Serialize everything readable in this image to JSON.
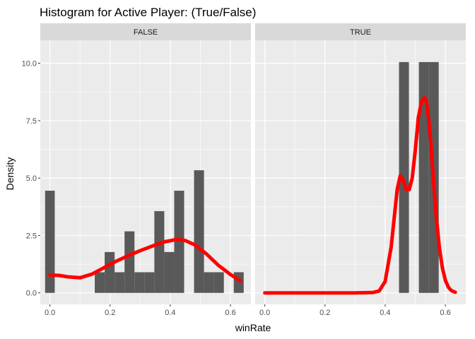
{
  "chart_data": {
    "type": "bar",
    "title": "Histogram for Active Player: (True/False)",
    "xlabel": "winRate",
    "ylabel": "Density",
    "xlim": [
      -0.032,
      0.668
    ],
    "ylim": [
      -0.5,
      11.0
    ],
    "x_ticks": [
      0.0,
      0.2,
      0.4,
      0.6
    ],
    "x_tick_labels": [
      "0.0",
      "0.2",
      "0.4",
      "0.6"
    ],
    "y_ticks": [
      0.0,
      2.5,
      5.0,
      7.5,
      10.0
    ],
    "y_tick_labels": [
      "0.0",
      "2.5",
      "5.0",
      "7.5",
      "10.0"
    ],
    "grid": true,
    "colors": {
      "panel_background": "#ebebeb",
      "strip_background": "#d9d9d9",
      "grid": "#ffffff",
      "bars": "#595959",
      "density": "#ff0000"
    },
    "panels": [
      {
        "strip_label": "FALSE",
        "bars": [
          {
            "x0": -0.016,
            "x1": 0.016,
            "density": 4.45
          },
          {
            "x0": 0.149,
            "x1": 0.182,
            "density": 0.9
          },
          {
            "x0": 0.182,
            "x1": 0.215,
            "density": 1.78
          },
          {
            "x0": 0.215,
            "x1": 0.248,
            "density": 0.9
          },
          {
            "x0": 0.248,
            "x1": 0.281,
            "density": 2.68
          },
          {
            "x0": 0.281,
            "x1": 0.314,
            "density": 0.9
          },
          {
            "x0": 0.314,
            "x1": 0.347,
            "density": 0.9
          },
          {
            "x0": 0.347,
            "x1": 0.38,
            "density": 3.56
          },
          {
            "x0": 0.38,
            "x1": 0.413,
            "density": 1.78
          },
          {
            "x0": 0.413,
            "x1": 0.446,
            "density": 4.45
          },
          {
            "x0": 0.479,
            "x1": 0.512,
            "density": 5.34
          },
          {
            "x0": 0.512,
            "x1": 0.545,
            "density": 0.9
          },
          {
            "x0": 0.545,
            "x1": 0.578,
            "density": 0.9
          },
          {
            "x0": 0.611,
            "x1": 0.644,
            "density": 0.9
          }
        ],
        "density_curve": {
          "x": [
            0.0,
            0.03,
            0.06,
            0.1,
            0.14,
            0.18,
            0.22,
            0.26,
            0.3,
            0.34,
            0.38,
            0.41,
            0.43,
            0.45,
            0.48,
            0.52,
            0.56,
            0.6,
            0.633
          ],
          "y": [
            0.78,
            0.76,
            0.7,
            0.66,
            0.82,
            1.1,
            1.38,
            1.62,
            1.84,
            2.04,
            2.22,
            2.3,
            2.32,
            2.28,
            2.1,
            1.7,
            1.2,
            0.8,
            0.52
          ]
        }
      },
      {
        "strip_label": "TRUE",
        "bars": [
          {
            "x0": 0.446,
            "x1": 0.479,
            "density": 10.05
          },
          {
            "x0": 0.512,
            "x1": 0.545,
            "density": 10.05
          },
          {
            "x0": 0.545,
            "x1": 0.578,
            "density": 10.05
          }
        ],
        "density_curve": {
          "x": [
            0.0,
            0.1,
            0.2,
            0.3,
            0.36,
            0.38,
            0.4,
            0.42,
            0.44,
            0.45,
            0.46,
            0.47,
            0.48,
            0.49,
            0.5,
            0.51,
            0.52,
            0.53,
            0.535,
            0.54,
            0.55,
            0.56,
            0.57,
            0.58,
            0.59,
            0.6,
            0.61,
            0.62,
            0.633
          ],
          "y": [
            0.0,
            0.0,
            0.0,
            0.0,
            0.02,
            0.08,
            0.5,
            2.0,
            4.5,
            5.1,
            4.9,
            4.5,
            4.5,
            5.0,
            6.2,
            7.6,
            8.3,
            8.5,
            8.45,
            8.1,
            6.8,
            5.0,
            3.3,
            2.0,
            1.1,
            0.55,
            0.25,
            0.1,
            0.03
          ]
        }
      }
    ]
  }
}
